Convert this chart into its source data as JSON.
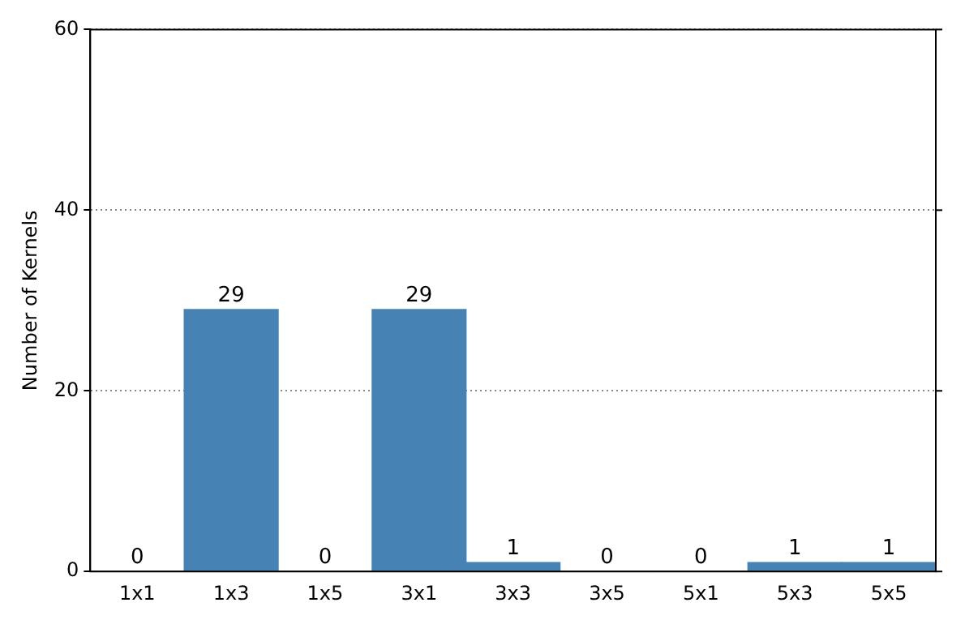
{
  "chart_data": {
    "type": "bar",
    "ylabel": "Number of Kernels",
    "categories": [
      "1x1",
      "1x3",
      "1x5",
      "3x1",
      "3x3",
      "3x5",
      "5x1",
      "5x3",
      "5x5"
    ],
    "values": [
      0,
      29,
      0,
      29,
      1,
      0,
      0,
      1,
      1
    ],
    "color": "#4682b4",
    "ylim": [
      0,
      60
    ],
    "yticks": [
      0,
      20,
      40,
      60
    ],
    "grid": "y",
    "data_labels": true
  }
}
